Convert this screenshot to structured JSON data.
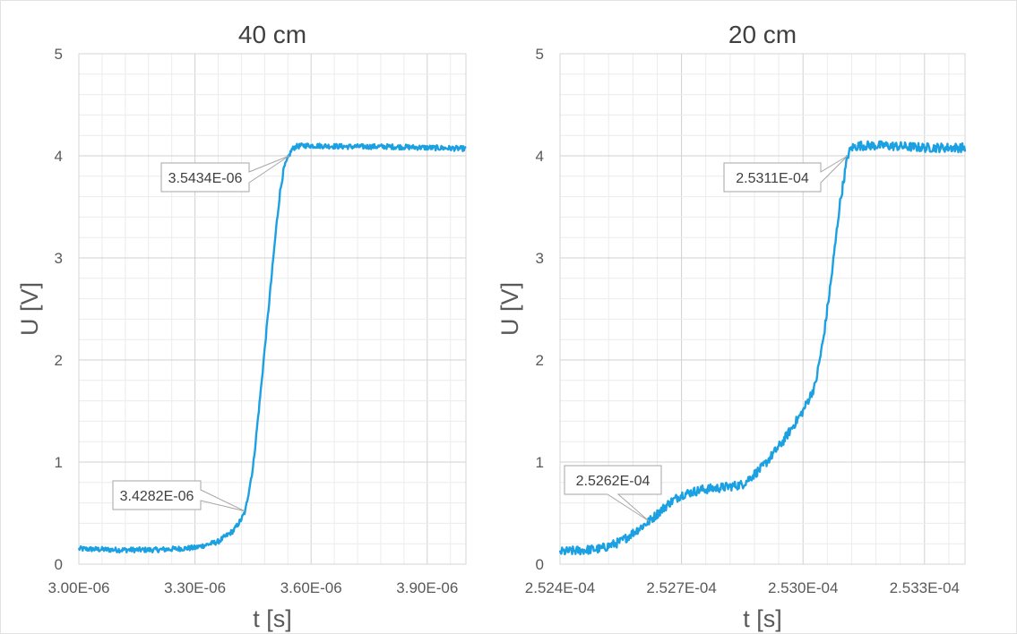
{
  "chart_data": [
    {
      "type": "line",
      "title": "40 cm",
      "xlabel": "t [s]",
      "ylabel": "U [V]",
      "xlim": [
        3e-06,
        4e-06
      ],
      "ylim": [
        0,
        5
      ],
      "x_ticks": [
        3e-06,
        3.3e-06,
        3.6e-06,
        3.9e-06
      ],
      "x_tick_labels": [
        "3.00E-06",
        "3.30E-06",
        "3.60E-06",
        "3.90E-06"
      ],
      "y_ticks": [
        0,
        1,
        2,
        3,
        4,
        5
      ],
      "y_tick_labels": [
        "0",
        "1",
        "2",
        "3",
        "4",
        "5"
      ],
      "grid": true,
      "legend": "none",
      "series_color": "#1ba1e2",
      "series": [
        {
          "x": [
            3e-06,
            3.1e-06,
            3.2e-06,
            3.3e-06,
            3.36e-06,
            3.4e-06,
            3.42e-06,
            3.43e-06,
            3.45e-06,
            3.47e-06,
            3.49e-06,
            3.51e-06,
            3.52e-06,
            3.53e-06,
            3.543e-06,
            3.55e-06,
            3.56e-06,
            3.58e-06,
            3.6e-06,
            3.7e-06,
            3.8e-06,
            3.9e-06,
            4e-06
          ],
          "y": [
            0.15,
            0.14,
            0.14,
            0.16,
            0.22,
            0.33,
            0.44,
            0.52,
            0.95,
            1.7,
            2.5,
            3.3,
            3.65,
            3.88,
            4.0,
            4.06,
            4.09,
            4.1,
            4.1,
            4.09,
            4.09,
            4.08,
            4.07
          ]
        }
      ],
      "annotations": [
        {
          "text": "3.4282E-06",
          "x": 3.4282e-06,
          "y": 0.52
        },
        {
          "text": "3.5434E-06",
          "x": 3.5434e-06,
          "y": 4.0
        }
      ]
    },
    {
      "type": "line",
      "title": "20 cm",
      "xlabel": "t [s]",
      "ylabel": "U [V]",
      "xlim": [
        0.0002524,
        0.0002534
      ],
      "ylim": [
        0,
        5
      ],
      "x_ticks": [
        0.0002524,
        0.0002527,
        0.000253,
        0.0002533
      ],
      "x_tick_labels": [
        "2.524E-04",
        "2.527E-04",
        "2.530E-04",
        "2.533E-04"
      ],
      "y_ticks": [
        0,
        1,
        2,
        3,
        4,
        5
      ],
      "y_tick_labels": [
        "0",
        "1",
        "2",
        "3",
        "4",
        "5"
      ],
      "grid": true,
      "legend": "none",
      "series_color": "#1ba1e2",
      "series": [
        {
          "x": [
            0.0002524,
            0.0002525,
            0.00025255,
            0.00025262,
            0.00025267,
            0.0002527,
            0.00025275,
            0.0002528,
            0.00025285,
            0.0002529,
            0.00025295,
            0.000253,
            0.00025303,
            0.00025305,
            0.00025307,
            0.00025309,
            0.00025311,
            0.00025312,
            0.00025314,
            0.0002532,
            0.0002533,
            0.0002534
          ],
          "y": [
            0.12,
            0.15,
            0.22,
            0.42,
            0.6,
            0.68,
            0.73,
            0.75,
            0.78,
            0.95,
            1.2,
            1.5,
            1.75,
            2.2,
            2.8,
            3.5,
            4.0,
            4.08,
            4.1,
            4.1,
            4.08,
            4.08
          ]
        }
      ],
      "annotations": [
        {
          "text": "2.5262E-04",
          "x": 0.00025262,
          "y": 0.42
        },
        {
          "text": "2.5311E-04",
          "x": 0.00025311,
          "y": 4.0
        }
      ]
    }
  ]
}
